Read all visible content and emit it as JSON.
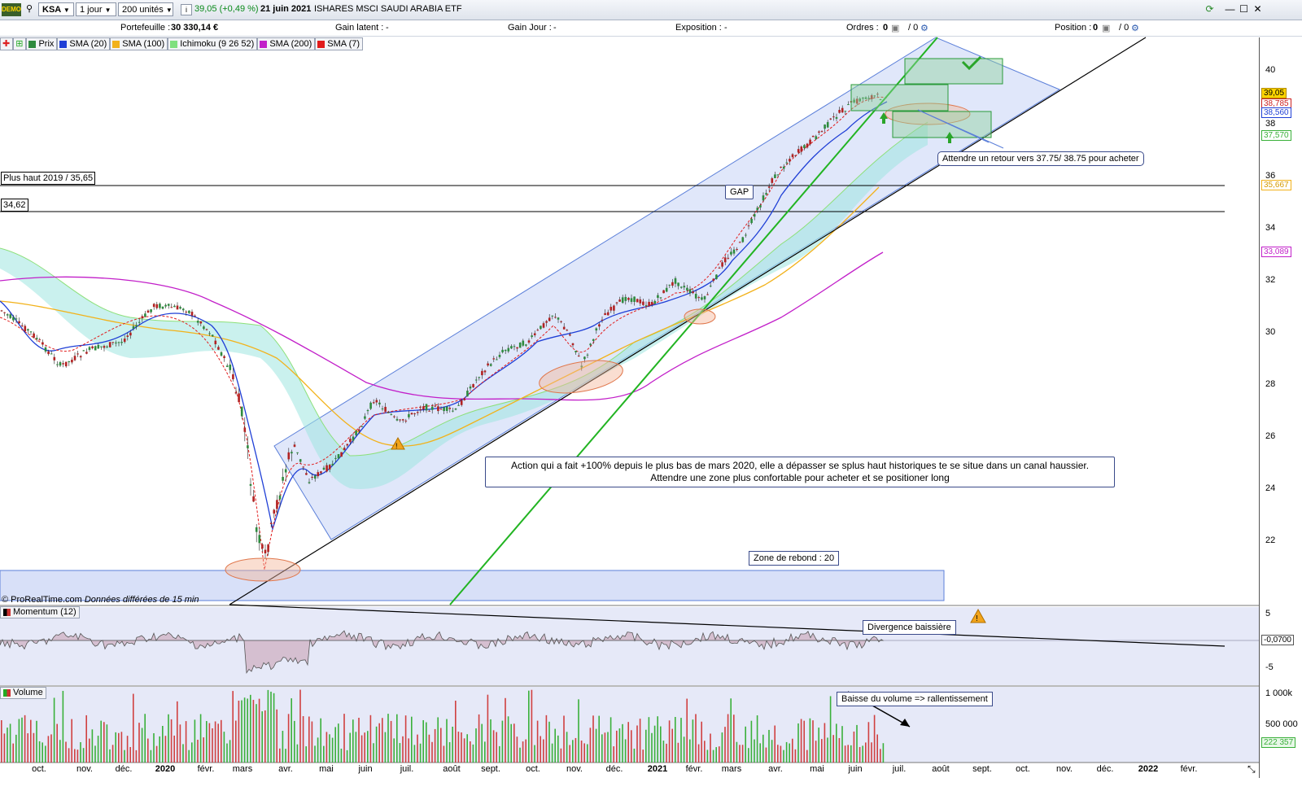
{
  "toolbar": {
    "demo_label": "DEMO",
    "symbol": "KSA",
    "period": "1 jour",
    "units": "200 unités",
    "price_change": "39,05 (+0,49 %)",
    "date": "21 juin 2021",
    "instrument_name": "ISHARES MSCI SAUDI ARABIA ETF"
  },
  "infobar": {
    "portfolio_label": "Portefeuille :",
    "portfolio_value": "30 330,14 €",
    "unrealized_label": "Gain latent :",
    "unrealized_value": "-",
    "day_gain_label": "Gain Jour :",
    "day_gain_value": "-",
    "exposure_label": "Exposition :",
    "exposure_value": "-",
    "orders_label": "Ordres :",
    "orders_value": "0",
    "orders_value2": "/ 0",
    "position_label": "Position :",
    "position_value": "0",
    "position_value2": "/ 0"
  },
  "legend": [
    {
      "label": "Prix",
      "color": "#2e8b3e"
    },
    {
      "label": "SMA (20)",
      "color": "#1f3fd6"
    },
    {
      "label": "SMA (100)",
      "color": "#f2b21b"
    },
    {
      "label": "Ichimoku (9 26 52)",
      "color": "#7fe07f"
    },
    {
      "label": "SMA (200)",
      "color": "#c21fc9"
    },
    {
      "label": "SMA (7)",
      "color": "#e11b1b"
    }
  ],
  "price_axis": {
    "ticks": [
      "40",
      "38",
      "36",
      "34",
      "32",
      "30",
      "28",
      "26",
      "24",
      "22"
    ],
    "labels": {
      "last": "39,05",
      "sma7": "38,785",
      "sma20": "38,560",
      "ichimoku": "37,570",
      "sma100": "35,667",
      "sma200": "33,089"
    }
  },
  "annotations": {
    "high_2019": "Plus haut 2019 / 35,65",
    "level_3462": "34,62",
    "gap": "GAP",
    "retour": "Attendre un retour vers 37.75/ 38.75 pour acheter",
    "comment_line1": "Action qui a fait +100% depuis le plus bas de mars 2020, elle a dépasser se splus haut historiques te se situe dans un canal haussier.",
    "comment_line2": "Attendre une zone plus confortable pour acheter et se positioner long",
    "rebond": "Zone de rebond : 20",
    "divergence": "Divergence baissière",
    "volume_note": "Baisse du volume => rallentissement",
    "copyright": "© ProRealTime.com",
    "delayed": "Données différées de 15 min"
  },
  "momentum": {
    "label": "Momentum (12)",
    "ticks": [
      "5",
      "-5"
    ],
    "value": "-0,0700"
  },
  "volume": {
    "label": "Volume",
    "ticks": [
      "1 000k",
      "500 000"
    ],
    "value": "222 357"
  },
  "x_axis": [
    "oct.",
    "nov.",
    "déc.",
    "2020",
    "févr.",
    "mars",
    "avr.",
    "mai",
    "juin",
    "juil.",
    "août",
    "sept.",
    "oct.",
    "nov.",
    "déc.",
    "2021",
    "févr.",
    "mars",
    "avr.",
    "mai",
    "juin",
    "juil.",
    "août",
    "sept.",
    "oct.",
    "nov.",
    "déc.",
    "2022",
    "févr."
  ]
}
